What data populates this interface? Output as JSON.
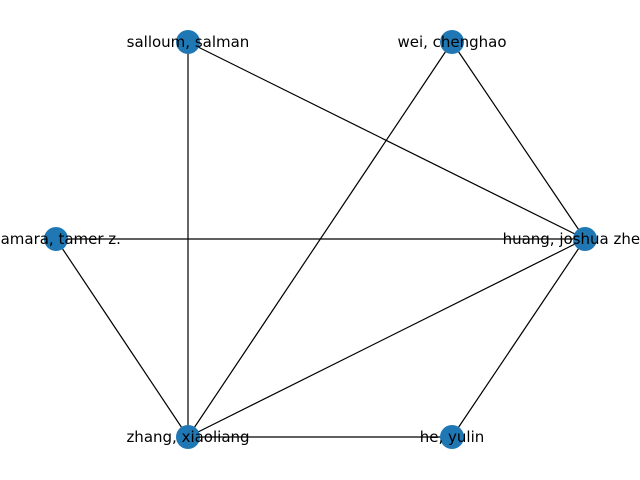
{
  "graph": {
    "node_color": "#1f77b4",
    "edge_color": "#000000",
    "nodes": [
      {
        "id": "salloum",
        "label": "salloum, salman"
      },
      {
        "id": "wei",
        "label": "wei, chenghao"
      },
      {
        "id": "namara",
        "label": "namara, tamer z."
      },
      {
        "id": "huang",
        "label": "huang, joshua zhexue"
      },
      {
        "id": "zhang",
        "label": "zhang, xiaoliang"
      },
      {
        "id": "he",
        "label": "he, yulin"
      }
    ],
    "edges": [
      [
        "salloum",
        "zhang"
      ],
      [
        "salloum",
        "huang"
      ],
      [
        "wei",
        "zhang"
      ],
      [
        "wei",
        "huang"
      ],
      [
        "namara",
        "huang"
      ],
      [
        "namara",
        "zhang"
      ],
      [
        "zhang",
        "huang"
      ],
      [
        "zhang",
        "he"
      ],
      [
        "he",
        "huang"
      ]
    ]
  }
}
